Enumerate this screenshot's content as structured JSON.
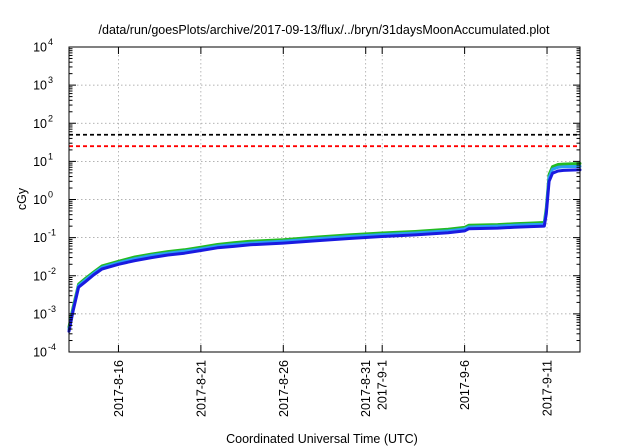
{
  "chart_data": {
    "type": "line",
    "title": "/data/run/goesPlots/archive/2017-09-13/flux/../bryn/31daysMoonAccumulated.plot",
    "xlabel": "Coordinated Universal Time (UTC)",
    "ylabel": "cGy",
    "yscale": "log",
    "ylim": [
      0.0001,
      10000
    ],
    "xlim": [
      "2017-08-13T00:00",
      "2017-09-13T00:00"
    ],
    "grid": true,
    "y_ticks": [
      {
        "base": "10",
        "exp": "-4",
        "value": 0.0001
      },
      {
        "base": "10",
        "exp": "-3",
        "value": 0.001
      },
      {
        "base": "10",
        "exp": "-2",
        "value": 0.01
      },
      {
        "base": "10",
        "exp": "-1",
        "value": 0.1
      },
      {
        "base": "10",
        "exp": "0",
        "value": 1
      },
      {
        "base": "10",
        "exp": "1",
        "value": 10
      },
      {
        "base": "10",
        "exp": "2",
        "value": 100
      },
      {
        "base": "10",
        "exp": "3",
        "value": 1000
      },
      {
        "base": "10",
        "exp": "4",
        "value": 10000
      }
    ],
    "x_ticks": [
      {
        "label": "2017-8-16",
        "date": "2017-08-16"
      },
      {
        "label": "2017-8-21",
        "date": "2017-08-21"
      },
      {
        "label": "2017-8-26",
        "date": "2017-08-26"
      },
      {
        "label": "2017-8-31",
        "date": "2017-08-31"
      },
      {
        "label": "2017-9-1",
        "date": "2017-09-01"
      },
      {
        "label": "2017-9-6",
        "date": "2017-09-06"
      },
      {
        "label": "2017-9-11",
        "date": "2017-09-11"
      }
    ],
    "thresholds": [
      {
        "value": 50,
        "color": "#000000"
      },
      {
        "value": 25,
        "color": "#ff0000"
      }
    ],
    "series": [
      {
        "color": "#22bb22",
        "x": [
          "2017-08-13T00:00",
          "2017-08-13T06:00",
          "2017-08-13T14:00",
          "2017-08-14T00:00",
          "2017-08-14T12:00",
          "2017-08-15T00:00",
          "2017-08-16T00:00",
          "2017-08-17T00:00",
          "2017-08-18T00:00",
          "2017-08-19T00:00",
          "2017-08-20T00:00",
          "2017-08-21T00:00",
          "2017-08-22T00:00",
          "2017-08-23T00:00",
          "2017-08-24T00:00",
          "2017-08-26T00:00",
          "2017-08-28T00:00",
          "2017-08-30T00:00",
          "2017-09-01T00:00",
          "2017-09-03T00:00",
          "2017-09-05T00:00",
          "2017-09-06T00:00",
          "2017-09-06T06:00",
          "2017-09-08T00:00",
          "2017-09-09T00:00",
          "2017-09-10T00:00",
          "2017-09-10T20:00",
          "2017-09-10T23:00",
          "2017-09-11T03:00",
          "2017-09-11T08:00",
          "2017-09-11T16:00",
          "2017-09-12T00:00",
          "2017-09-13T00:00"
        ],
        "y": [
          0.00045,
          0.0015,
          0.006,
          0.0085,
          0.0125,
          0.018,
          0.024,
          0.031,
          0.037,
          0.043,
          0.048,
          0.056,
          0.066,
          0.073,
          0.08,
          0.088,
          0.103,
          0.118,
          0.132,
          0.145,
          0.165,
          0.185,
          0.21,
          0.22,
          0.23,
          0.24,
          0.25,
          0.6,
          4.5,
          7.3,
          8.3,
          8.5,
          8.8
        ]
      },
      {
        "color": "#2a9df4",
        "x": [
          "2017-08-13T00:00",
          "2017-08-13T06:00",
          "2017-08-13T14:00",
          "2017-08-14T00:00",
          "2017-08-14T12:00",
          "2017-08-15T00:00",
          "2017-08-16T00:00",
          "2017-08-17T00:00",
          "2017-08-18T00:00",
          "2017-08-19T00:00",
          "2017-08-20T00:00",
          "2017-08-21T00:00",
          "2017-08-22T00:00",
          "2017-08-23T00:00",
          "2017-08-24T00:00",
          "2017-08-26T00:00",
          "2017-08-28T00:00",
          "2017-08-30T00:00",
          "2017-09-01T00:00",
          "2017-09-03T00:00",
          "2017-09-05T00:00",
          "2017-09-06T00:00",
          "2017-09-06T06:00",
          "2017-09-08T00:00",
          "2017-09-09T00:00",
          "2017-09-10T00:00",
          "2017-09-10T20:00",
          "2017-09-10T23:00",
          "2017-09-11T03:00",
          "2017-09-11T08:00",
          "2017-09-11T16:00",
          "2017-09-12T00:00",
          "2017-09-13T00:00"
        ],
        "y": [
          0.0004,
          0.0013,
          0.0055,
          0.0078,
          0.0115,
          0.0165,
          0.022,
          0.028,
          0.034,
          0.039,
          0.044,
          0.051,
          0.06,
          0.066,
          0.072,
          0.08,
          0.093,
          0.107,
          0.12,
          0.132,
          0.15,
          0.168,
          0.19,
          0.2,
          0.21,
          0.22,
          0.225,
          0.5,
          3.8,
          6.2,
          7.0,
          7.2,
          7.4
        ]
      },
      {
        "color": "#1a1ae0",
        "x": [
          "2017-08-13T00:00",
          "2017-08-13T06:00",
          "2017-08-13T14:00",
          "2017-08-14T00:00",
          "2017-08-14T12:00",
          "2017-08-15T00:00",
          "2017-08-16T00:00",
          "2017-08-17T00:00",
          "2017-08-18T00:00",
          "2017-08-19T00:00",
          "2017-08-20T00:00",
          "2017-08-21T00:00",
          "2017-08-22T00:00",
          "2017-08-23T00:00",
          "2017-08-24T00:00",
          "2017-08-26T00:00",
          "2017-08-28T00:00",
          "2017-08-30T00:00",
          "2017-09-01T00:00",
          "2017-09-03T00:00",
          "2017-09-05T00:00",
          "2017-09-06T00:00",
          "2017-09-06T06:00",
          "2017-09-08T00:00",
          "2017-09-09T00:00",
          "2017-09-10T00:00",
          "2017-09-10T20:00",
          "2017-09-10T23:00",
          "2017-09-11T03:00",
          "2017-09-11T08:00",
          "2017-09-11T16:00",
          "2017-09-12T00:00",
          "2017-09-13T00:00"
        ],
        "y": [
          0.00035,
          0.0012,
          0.005,
          0.007,
          0.0105,
          0.015,
          0.02,
          0.025,
          0.03,
          0.035,
          0.039,
          0.046,
          0.054,
          0.059,
          0.065,
          0.072,
          0.083,
          0.095,
          0.107,
          0.118,
          0.134,
          0.15,
          0.17,
          0.178,
          0.186,
          0.195,
          0.2,
          0.42,
          3.0,
          4.9,
          5.6,
          5.8,
          6.0
        ]
      }
    ]
  }
}
